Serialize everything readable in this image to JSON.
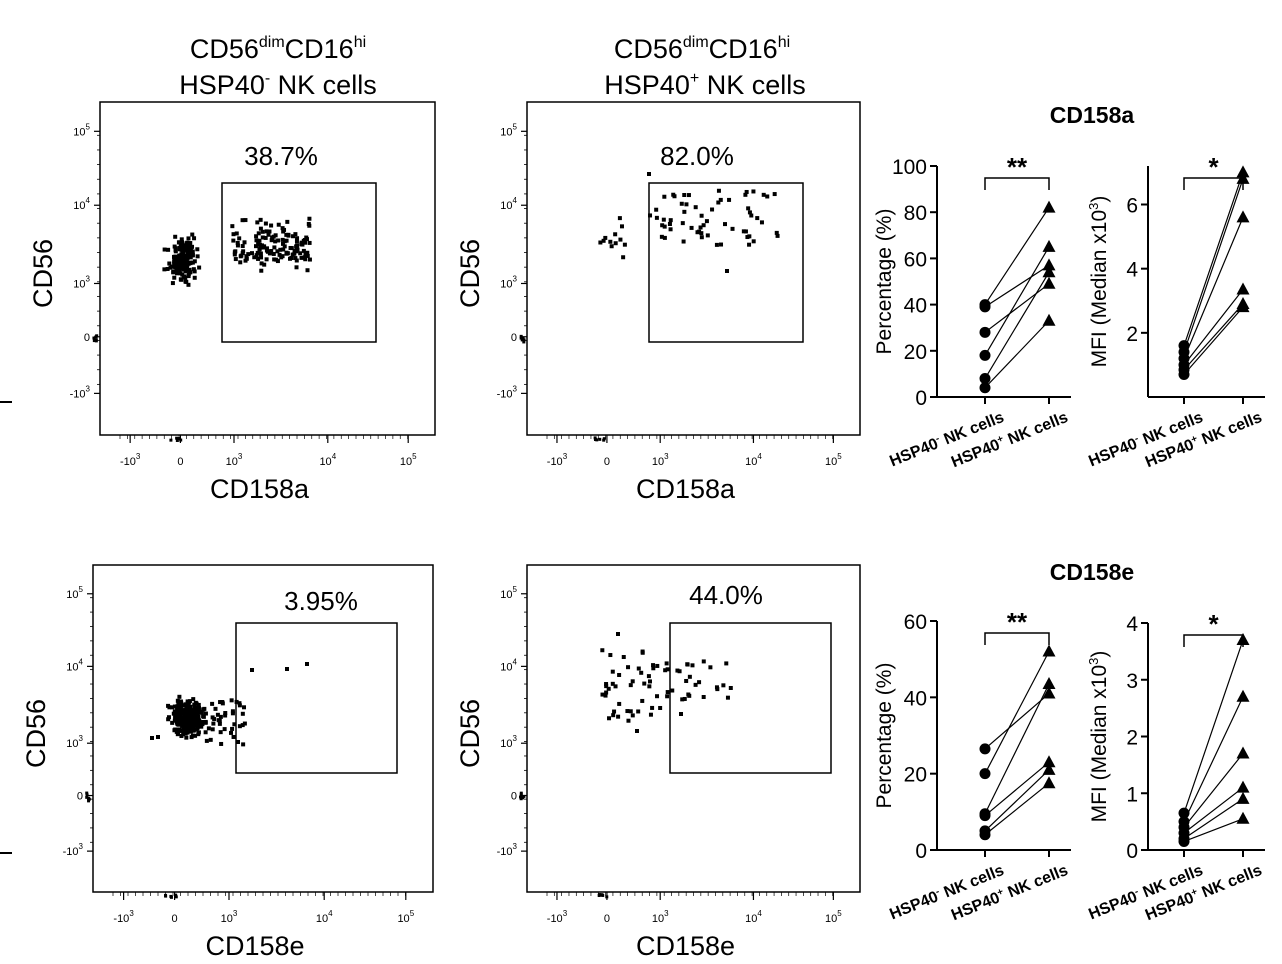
{
  "figure": {
    "column_headers": [
      {
        "line1_main": "CD56",
        "line1_sup1": "dim",
        "line1_mid": "CD16",
        "line1_sup2": "hi",
        "line2_pre": "HSP40",
        "line2_sup": "-",
        "line2_post": " NK cells"
      },
      {
        "line1_main": "CD56",
        "line1_sup1": "dim",
        "line1_mid": "CD16",
        "line1_sup2": "hi",
        "line2_pre": "HSP40",
        "line2_sup": "+",
        "line2_post": " NK cells"
      }
    ],
    "flow_axis": {
      "y_ticks": [
        {
          "base": "10",
          "exp": "5"
        },
        {
          "base": "10",
          "exp": "4"
        },
        {
          "base": "10",
          "exp": "3"
        },
        {
          "base": "0",
          "exp": ""
        },
        {
          "base": "-10",
          "exp": "3"
        }
      ],
      "x_ticks": [
        {
          "base": "-10",
          "exp": "3"
        },
        {
          "base": "0",
          "exp": ""
        },
        {
          "base": "10",
          "exp": "3"
        },
        {
          "base": "10",
          "exp": "4"
        },
        {
          "base": "10",
          "exp": "5"
        }
      ]
    },
    "line_plot_xticks": [
      {
        "pre": "HSP40",
        "sup": "-",
        "post": " NK cells"
      },
      {
        "pre": "HSP40",
        "sup": "+",
        "post": " NK cells"
      }
    ],
    "rows": [
      {
        "title": "CD158a",
        "flow": [
          {
            "gate_label": "38.7%",
            "xlabel": "CD158a",
            "ylabel": "CD56"
          },
          {
            "gate_label": "82.0%",
            "xlabel": "CD158a",
            "ylabel": "CD56"
          }
        ],
        "pct_ylabel": "Percentage (%)",
        "mfi_ylabel_pre": "MFI (Median x10",
        "mfi_ylabel_sup": "3",
        "mfi_ylabel_post": ")"
      },
      {
        "title": "CD158e",
        "flow": [
          {
            "gate_label": "3.95%",
            "xlabel": "CD158e",
            "ylabel": "CD56"
          },
          {
            "gate_label": "44.0%",
            "xlabel": "CD158e",
            "ylabel": "CD56"
          }
        ],
        "pct_ylabel": "Percentage (%)",
        "mfi_ylabel_pre": "MFI (Median x10",
        "mfi_ylabel_sup": "3",
        "mfi_ylabel_post": ")"
      }
    ]
  },
  "chart_data": [
    {
      "type": "line",
      "title": "CD158a",
      "ylabel": "Percentage (%)",
      "categories": [
        "HSP40- NK cells",
        "HSP40+ NK cells"
      ],
      "ylim": [
        0,
        100
      ],
      "yticks": [
        0,
        20,
        40,
        60,
        80,
        100
      ],
      "significance": "**",
      "pairs": [
        [
          40,
          82
        ],
        [
          39,
          57
        ],
        [
          28,
          49
        ],
        [
          18,
          65
        ],
        [
          8,
          54
        ],
        [
          4,
          33
        ]
      ]
    },
    {
      "type": "line",
      "title": "CD158a",
      "ylabel": "MFI (Median x10^3)",
      "categories": [
        "HSP40- NK cells",
        "HSP40+ NK cells"
      ],
      "ylim": [
        0,
        7.2
      ],
      "yticks": [
        2,
        4,
        6
      ],
      "significance": "*",
      "pairs": [
        [
          1.6,
          7.0
        ],
        [
          1.4,
          6.8
        ],
        [
          1.2,
          5.6
        ],
        [
          1.0,
          3.35
        ],
        [
          0.85,
          2.9
        ],
        [
          0.7,
          2.8
        ]
      ]
    },
    {
      "type": "line",
      "title": "CD158e",
      "ylabel": "Percentage (%)",
      "categories": [
        "HSP40- NK cells",
        "HSP40+ NK cells"
      ],
      "ylim": [
        0,
        60
      ],
      "yticks": [
        0,
        20,
        40,
        60
      ],
      "significance": "**",
      "pairs": [
        [
          26.5,
          41
        ],
        [
          20,
          52
        ],
        [
          9.5,
          43.5
        ],
        [
          9,
          23
        ],
        [
          5,
          21
        ],
        [
          4,
          17.5
        ]
      ]
    },
    {
      "type": "line",
      "title": "CD158e",
      "ylabel": "MFI (Median x10^3)",
      "categories": [
        "HSP40- NK cells",
        "HSP40+ NK cells"
      ],
      "ylim": [
        0,
        4
      ],
      "yticks": [
        0,
        1,
        2,
        3,
        4
      ],
      "significance": "*",
      "pairs": [
        [
          0.65,
          3.7
        ],
        [
          0.5,
          2.7
        ],
        [
          0.4,
          1.7
        ],
        [
          0.3,
          1.1
        ],
        [
          0.2,
          0.9
        ],
        [
          0.15,
          0.55
        ]
      ]
    }
  ]
}
